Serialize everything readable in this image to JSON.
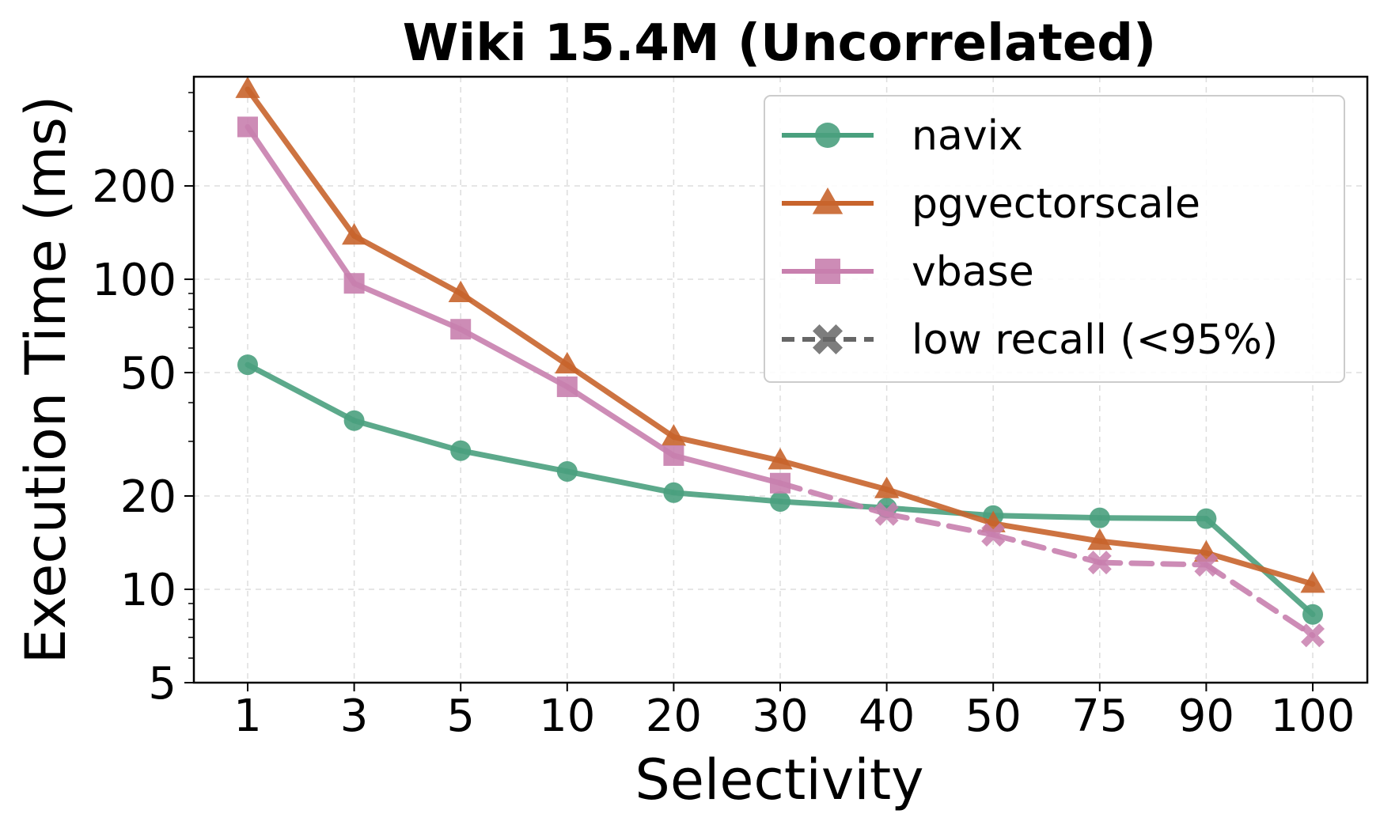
{
  "chart_data": {
    "type": "line",
    "title": "Wiki 15.4M (Uncorrelated)",
    "xlabel": "Selectivity",
    "ylabel": "Execution Time (ms)",
    "yscale": "log",
    "ylim": [
      5,
      450
    ],
    "categories": [
      "1",
      "3",
      "5",
      "10",
      "20",
      "30",
      "40",
      "50",
      "75",
      "90",
      "100"
    ],
    "yticks": [
      5,
      10,
      20,
      50,
      100,
      200
    ],
    "ytick_labels": [
      "5",
      "10",
      "20",
      "50",
      "100",
      "200"
    ],
    "grid": true,
    "legend_position": "top-right",
    "series": [
      {
        "name": "navix",
        "color": "#4aa07e",
        "marker": "circle",
        "values": [
          53,
          35,
          28,
          24,
          20.5,
          19.2,
          18.3,
          17.3,
          17.0,
          16.9,
          8.3
        ],
        "low_recall": [
          false,
          false,
          false,
          false,
          false,
          false,
          false,
          false,
          false,
          false,
          false
        ]
      },
      {
        "name": "pgvectorscale",
        "color": "#c8642c",
        "marker": "triangle",
        "values": [
          410,
          138,
          90,
          53,
          31,
          26,
          21,
          16.3,
          14.3,
          13.1,
          10.4
        ],
        "low_recall": [
          false,
          false,
          false,
          false,
          false,
          false,
          false,
          false,
          false,
          false,
          false
        ]
      },
      {
        "name": "vbase",
        "color": "#c87fae",
        "marker": "square",
        "values": [
          310,
          97,
          69,
          45,
          27,
          22,
          17.5,
          15,
          12.2,
          12,
          7.1
        ],
        "low_recall": [
          false,
          false,
          false,
          false,
          false,
          false,
          true,
          true,
          true,
          true,
          true
        ]
      }
    ],
    "legend": {
      "entries": [
        "navix",
        "pgvectorscale",
        "vbase",
        "low recall (<95%)"
      ],
      "low_recall_color": "#666666"
    }
  }
}
